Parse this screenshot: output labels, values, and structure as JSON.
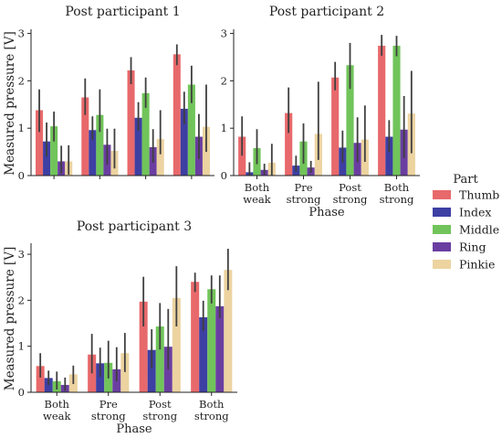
{
  "chart_data": {
    "type": "bar",
    "categories": [
      "Both\nweak",
      "Pre\nstrong",
      "Post\nstrong",
      "Both\nstrong"
    ],
    "ylabel": "Measured pressure [V]",
    "xlabel": "Phase",
    "yticks": [
      0,
      1,
      2,
      3
    ],
    "legend": {
      "title": "Part",
      "placement": "right",
      "items": [
        {
          "name": "Thumb",
          "color": "#e8696b"
        },
        {
          "name": "Index",
          "color": "#3d3fa3"
        },
        {
          "name": "Middle",
          "color": "#71c45a"
        },
        {
          "name": "Ring",
          "color": "#6a3ea1"
        },
        {
          "name": "Pinkie",
          "color": "#ecd3a0"
        }
      ]
    },
    "panels": [
      {
        "title": "Post participant 1",
        "ylim": [
          0,
          3.05
        ],
        "show_xticklabels": false,
        "show_xlabel": false,
        "show_ylabel": true,
        "series": [
          {
            "name": "Thumb",
            "values": [
              1.38,
              1.65,
              2.22,
              2.56
            ],
            "err": [
              [
                0.92,
                1.82
              ],
              [
                1.28,
                2.05
              ],
              [
                1.93,
                2.5
              ],
              [
                2.33,
                2.77
              ]
            ]
          },
          {
            "name": "Index",
            "values": [
              0.72,
              0.96,
              1.22,
              1.41
            ],
            "err": [
              [
                0.4,
                1.12
              ],
              [
                0.75,
                1.25
              ],
              [
                0.95,
                1.55
              ],
              [
                1.08,
                1.77
              ]
            ]
          },
          {
            "name": "Middle",
            "values": [
              1.04,
              1.28,
              1.74,
              1.92
            ],
            "err": [
              [
                0.72,
                1.35
              ],
              [
                0.92,
                1.82
              ],
              [
                1.43,
                2.07
              ],
              [
                1.53,
                2.32
              ]
            ]
          },
          {
            "name": "Ring",
            "values": [
              0.3,
              0.65,
              0.6,
              0.82
            ],
            "err": [
              [
                0.04,
                0.63
              ],
              [
                0.23,
                0.99
              ],
              [
                0.27,
                0.98
              ],
              [
                0.35,
                1.3
              ]
            ]
          },
          {
            "name": "Pinkie",
            "values": [
              0.3,
              0.52,
              0.77,
              1.03
            ],
            "err": [
              [
                0.02,
                0.64
              ],
              [
                0.15,
                0.99
              ],
              [
                0.45,
                1.38
              ],
              [
                0.5,
                1.92
              ]
            ]
          }
        ]
      },
      {
        "title": "Post participant 2",
        "ylim": [
          0,
          3.05
        ],
        "show_xticklabels": true,
        "show_xlabel": true,
        "show_ylabel": false,
        "series": [
          {
            "name": "Thumb",
            "values": [
              0.82,
              1.32,
              2.07,
              2.74
            ],
            "err": [
              [
                0.42,
                1.25
              ],
              [
                0.9,
                1.86
              ],
              [
                1.8,
                2.4
              ],
              [
                2.53,
                2.97
              ]
            ]
          },
          {
            "name": "Index",
            "values": [
              0.07,
              0.21,
              0.59,
              0.82
            ],
            "err": [
              [
                0.0,
                0.28
              ],
              [
                0.08,
                0.42
              ],
              [
                0.27,
                0.95
              ],
              [
                0.5,
                1.17
              ]
            ]
          },
          {
            "name": "Middle",
            "values": [
              0.58,
              0.72,
              2.33,
              2.74
            ],
            "err": [
              [
                0.24,
                0.98
              ],
              [
                0.25,
                1.1
              ],
              [
                1.83,
                2.8
              ],
              [
                2.52,
                2.95
              ]
            ]
          },
          {
            "name": "Ring",
            "values": [
              0.12,
              0.17,
              0.69,
              0.97
            ],
            "err": [
              [
                0.02,
                0.25
              ],
              [
                0.06,
                0.31
              ],
              [
                0.28,
                1.23
              ],
              [
                0.37,
                1.68
              ]
            ]
          },
          {
            "name": "Pinkie",
            "values": [
              0.27,
              0.88,
              0.76,
              1.31
            ],
            "err": [
              [
                0.01,
                0.67
              ],
              [
                0.33,
                1.98
              ],
              [
                0.29,
                1.48
              ],
              [
                0.47,
                2.21
              ]
            ]
          }
        ]
      },
      {
        "title": "Post participant 3",
        "ylim": [
          0,
          3.2
        ],
        "show_xticklabels": true,
        "show_xlabel": true,
        "show_ylabel": true,
        "series": [
          {
            "name": "Thumb",
            "values": [
              0.57,
              0.82,
              1.97,
              2.4
            ],
            "err": [
              [
                0.32,
                0.85
              ],
              [
                0.41,
                1.27
              ],
              [
                1.43,
                2.51
              ],
              [
                2.18,
                2.6
              ]
            ]
          },
          {
            "name": "Index",
            "values": [
              0.31,
              0.63,
              0.92,
              1.63
            ],
            "err": [
              [
                0.16,
                0.47
              ],
              [
                0.33,
                0.97
              ],
              [
                0.52,
                1.37
              ],
              [
                1.33,
                1.99
              ]
            ]
          },
          {
            "name": "Middle",
            "values": [
              0.24,
              0.64,
              1.43,
              2.24
            ],
            "err": [
              [
                0.06,
                0.45
              ],
              [
                0.3,
                1.12
              ],
              [
                0.93,
                1.94
              ],
              [
                1.93,
                2.54
              ]
            ]
          },
          {
            "name": "Ring",
            "values": [
              0.16,
              0.5,
              0.99,
              1.87
            ],
            "err": [
              [
                0.03,
                0.32
              ],
              [
                0.24,
                0.98
              ],
              [
                0.5,
                1.81
              ],
              [
                1.61,
                2.54
              ]
            ]
          },
          {
            "name": "Pinkie",
            "values": [
              0.39,
              0.85,
              2.05,
              2.66
            ],
            "err": [
              [
                0.18,
                0.58
              ],
              [
                0.44,
                1.29
              ],
              [
                1.43,
                2.74
              ],
              [
                2.22,
                3.12
              ]
            ]
          }
        ]
      }
    ]
  }
}
